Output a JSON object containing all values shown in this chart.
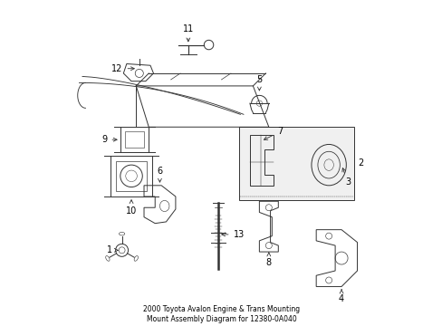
{
  "title": "2000 Toyota Avalon Engine & Trans Mounting\nMount Assembly Diagram for 12380-0A040",
  "bg_color": "#ffffff",
  "line_color": "#333333",
  "text_color": "#000000",
  "figsize": [
    4.89,
    3.6
  ],
  "dpi": 100,
  "labels": {
    "1": [
      0.175,
      0.175,
      -0.025,
      0.0
    ],
    "2": [
      0.955,
      0.485,
      0.0,
      0.0
    ],
    "3": [
      0.825,
      0.485,
      0.02,
      -0.05
    ],
    "4": [
      0.875,
      0.155,
      0.0,
      -0.04
    ],
    "5": [
      0.62,
      0.69,
      0.0,
      0.06
    ],
    "6": [
      0.3,
      0.39,
      0.0,
      0.05
    ],
    "7": [
      0.75,
      0.545,
      0.03,
      0.05
    ],
    "8": [
      0.68,
      0.27,
      0.0,
      -0.04
    ],
    "9": [
      0.21,
      0.545,
      -0.04,
      0.0
    ],
    "10": [
      0.21,
      0.435,
      0.0,
      -0.05
    ],
    "11": [
      0.385,
      0.895,
      0.0,
      0.04
    ],
    "12": [
      0.195,
      0.77,
      -0.055,
      0.0
    ],
    "13": [
      0.49,
      0.235,
      0.055,
      0.0
    ]
  }
}
